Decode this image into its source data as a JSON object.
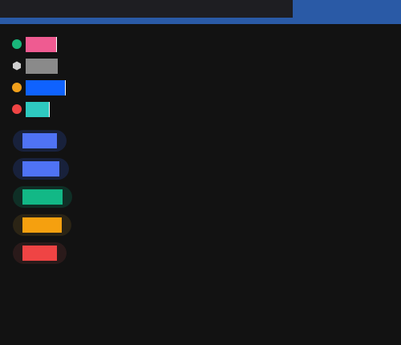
{
  "theme": {
    "background": "#121212",
    "topbar_accent": "#2a5aa6",
    "topbar_dark": "#1e1e22"
  },
  "status_rows": [
    {
      "indicator": "dot",
      "indicator_color": "#19b67a",
      "swatch_color": "#ef5b91"
    },
    {
      "indicator": "hexagon-icon",
      "indicator_color": "#d0d0d0",
      "swatch_color": "#8a8a8a"
    },
    {
      "indicator": "dot",
      "indicator_color": "#f1a01b",
      "swatch_color": "#0f62fe"
    },
    {
      "indicator": "dot",
      "indicator_color": "#ef4444",
      "swatch_color": "#2ec9c0"
    }
  ],
  "tag_pills": [
    {
      "pill_bg": "#18213b",
      "fill_color": "#4f73f5"
    },
    {
      "pill_bg": "#18213b",
      "fill_color": "#4f73f5"
    },
    {
      "pill_bg": "#0f2f26",
      "fill_color": "#12b886"
    },
    {
      "pill_bg": "#2b2415",
      "fill_color": "#f5a00f"
    },
    {
      "pill_bg": "#2a1a1a",
      "fill_color": "#ef4444"
    }
  ]
}
